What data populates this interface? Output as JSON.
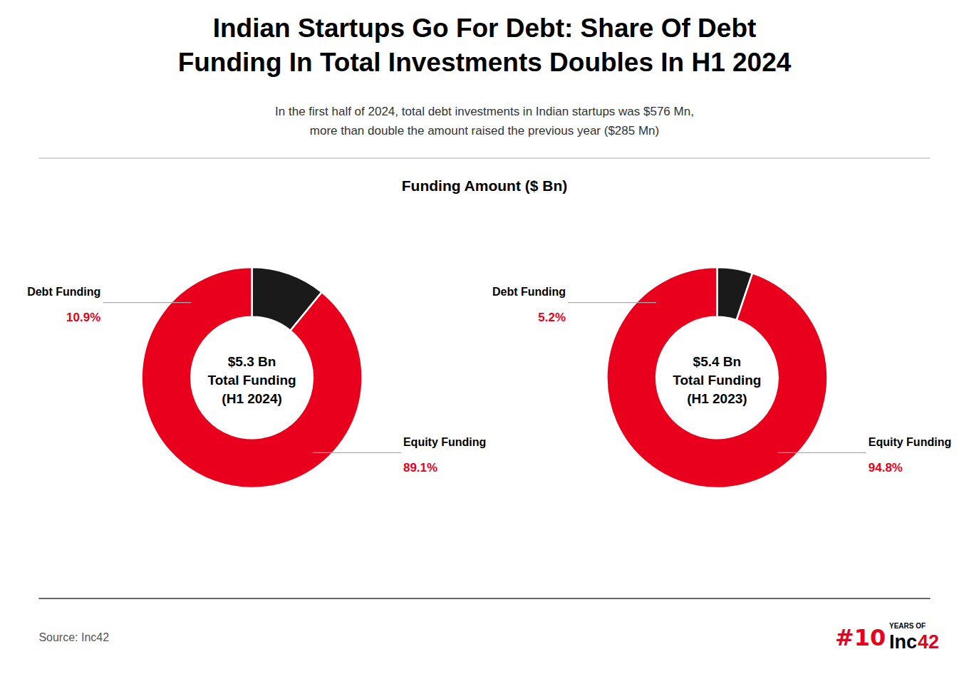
{
  "title": "Indian Startups Go For Debt: Share Of Debt\nFunding In Total Investments Doubles In H1 2024",
  "subtitle": "In the first half of 2024, total debt investments in Indian startups was $576 Mn,\nmore than double the amount raised the previous year ($285 Mn)",
  "annotations": [
    "Funding Amount ($ Bn)",
    "Source: Inc42",
    "#10",
    "YEARS OF",
    "Inc",
    "42"
  ],
  "chart_data": [
    {
      "type": "donut",
      "categories": [
        "Debt Funding",
        "Equity Funding"
      ],
      "values": [
        10.9,
        89.1
      ],
      "value_labels": [
        "10.9%",
        "89.1%"
      ],
      "colors": [
        "#1a1a1a",
        "#e8001c"
      ],
      "data_labels": true,
      "annotations": [
        "$5.3 Bn\nTotal Funding\n(H1 2024)"
      ]
    },
    {
      "type": "donut",
      "categories": [
        "Debt Funding",
        "Equity Funding"
      ],
      "values": [
        5.2,
        94.8
      ],
      "value_labels": [
        "5.2%",
        "94.8%"
      ],
      "colors": [
        "#1a1a1a",
        "#e8001c"
      ],
      "data_labels": true,
      "annotations": [
        "$5.4 Bn\nTotal Funding\n(H1 2023)"
      ]
    }
  ]
}
